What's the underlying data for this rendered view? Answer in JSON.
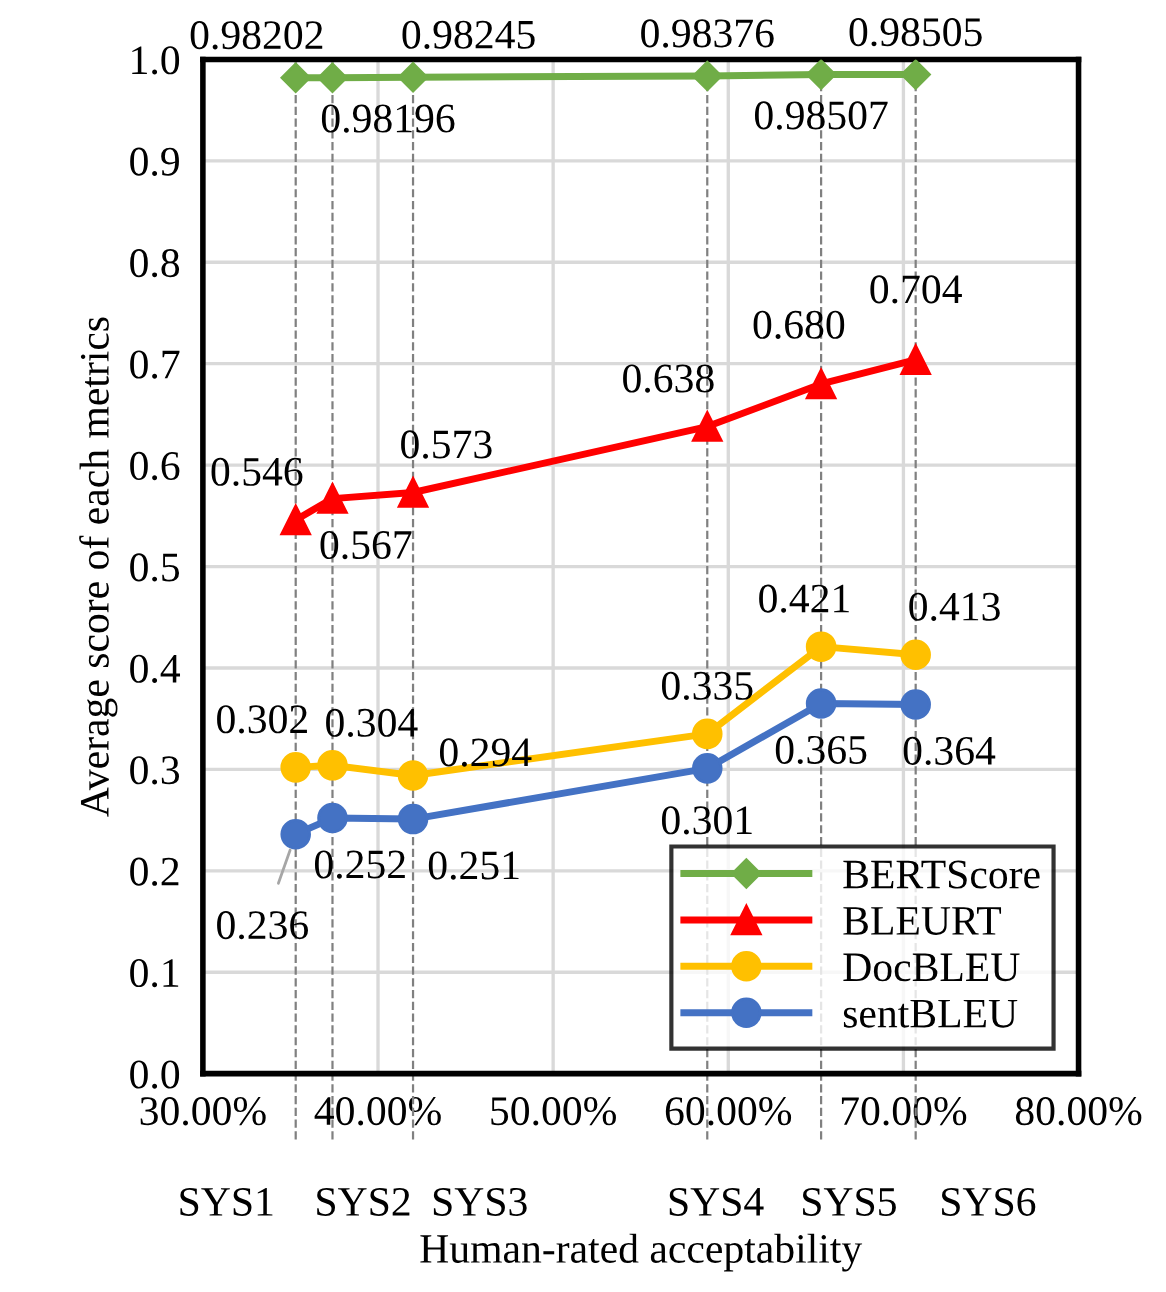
{
  "chart_data": {
    "type": "line",
    "xlabel": "Human-rated acceptability",
    "ylabel": "Average score of each metrics",
    "x": [
      35.3,
      37.4,
      42.0,
      58.8,
      65.3,
      70.7
    ],
    "series": [
      {
        "name": "BERTScore",
        "color": "#70ad47",
        "marker": "diamond",
        "values": [
          0.98202,
          0.98196,
          0.98245,
          0.98376,
          0.98507,
          0.98505
        ],
        "value_labels": [
          "0.98202",
          "0.98196",
          "0.98245",
          "0.98376",
          "0.98507",
          "0.98505"
        ]
      },
      {
        "name": "BLEURT",
        "color": "#ff0000",
        "marker": "triangle",
        "values": [
          0.546,
          0.567,
          0.573,
          0.638,
          0.68,
          0.704
        ],
        "value_labels": [
          "0.546",
          "0.567",
          "0.573",
          "0.638",
          "0.680",
          "0.704"
        ]
      },
      {
        "name": "DocBLEU",
        "color": "#ffc000",
        "marker": "circle",
        "values": [
          0.302,
          0.304,
          0.294,
          0.335,
          0.421,
          0.413
        ],
        "value_labels": [
          "0.302",
          "0.304",
          "0.294",
          "0.335",
          "0.421",
          "0.413"
        ]
      },
      {
        "name": "sentBLEU",
        "color": "#4472c4",
        "marker": "circle",
        "values": [
          0.236,
          0.252,
          0.251,
          0.301,
          0.365,
          0.364
        ],
        "value_labels": [
          "0.236",
          "0.252",
          "0.251",
          "0.301",
          "0.365",
          "0.364"
        ]
      }
    ],
    "xlim": [
      30,
      80
    ],
    "xticks": [
      {
        "value": 30,
        "label": "30.00%"
      },
      {
        "value": 40,
        "label": "40.00%"
      },
      {
        "value": 50,
        "label": "50.00%"
      },
      {
        "value": 60,
        "label": "60.00%"
      },
      {
        "value": 70,
        "label": "70.00%"
      },
      {
        "value": 80,
        "label": "80.00%"
      }
    ],
    "ylim": [
      0,
      1
    ],
    "yticks": [
      {
        "value": 0,
        "label": "0.0"
      },
      {
        "value": 0.1,
        "label": "0.1"
      },
      {
        "value": 0.2,
        "label": "0.2"
      },
      {
        "value": 0.3,
        "label": "0.3"
      },
      {
        "value": 0.4,
        "label": "0.4"
      },
      {
        "value": 0.5,
        "label": "0.5"
      },
      {
        "value": 0.6,
        "label": "0.6"
      },
      {
        "value": 0.7,
        "label": "0.7"
      },
      {
        "value": 0.8,
        "label": "0.8"
      },
      {
        "value": 0.9,
        "label": "0.9"
      },
      {
        "value": 1.0,
        "label": "1.0"
      }
    ],
    "ref_lines": [
      {
        "axis": "x",
        "value": 35.3,
        "label": "SYS1",
        "color": "#808080",
        "line_style": "dashed"
      },
      {
        "axis": "x",
        "value": 37.4,
        "label": "SYS2",
        "color": "#808080",
        "line_style": "dashed"
      },
      {
        "axis": "x",
        "value": 42.0,
        "label": "SYS3",
        "color": "#808080",
        "line_style": "dashed"
      },
      {
        "axis": "x",
        "value": 58.8,
        "label": "SYS4",
        "color": "#808080",
        "line_style": "dashed"
      },
      {
        "axis": "x",
        "value": 65.3,
        "label": "SYS5",
        "color": "#808080",
        "line_style": "dashed"
      },
      {
        "axis": "x",
        "value": 70.7,
        "label": "SYS6",
        "color": "#808080",
        "line_style": "dashed"
      }
    ],
    "grid": true,
    "legend": "bottom right",
    "line_style": "solid"
  }
}
